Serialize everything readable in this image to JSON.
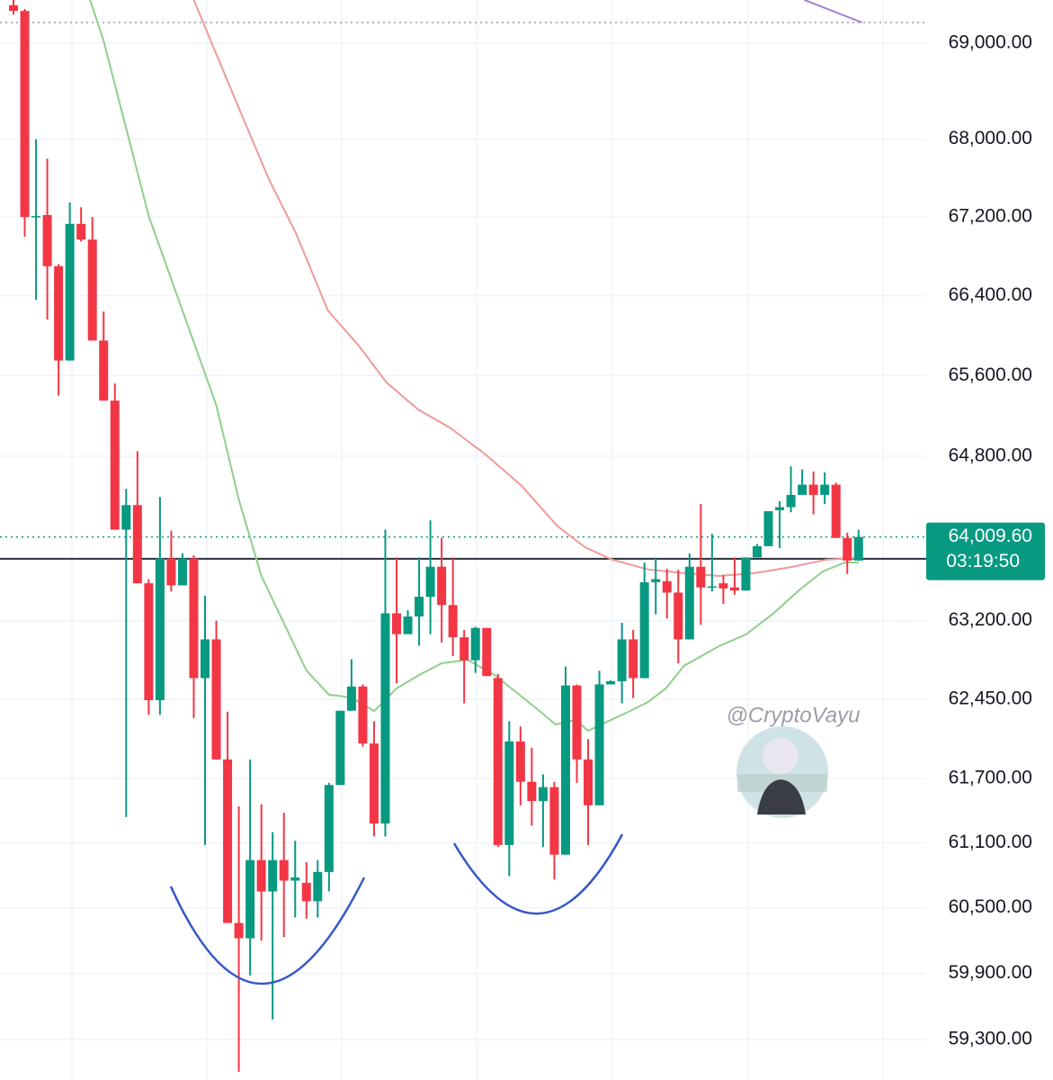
{
  "chart_data": {
    "type": "candlestick",
    "log_scale": true,
    "grid": true,
    "up_color": "#089981",
    "down_color": "#f23645",
    "ylim": [
      58936,
      69455
    ],
    "yticks": [
      {
        "value": 69000,
        "label": "69,000.00"
      },
      {
        "value": 68000,
        "label": "68,000.00"
      },
      {
        "value": 67200,
        "label": "67,200.00"
      },
      {
        "value": 66400,
        "label": "66,400.00"
      },
      {
        "value": 65600,
        "label": "65,600.00"
      },
      {
        "value": 64800,
        "label": "64,800.00"
      },
      {
        "value": 63200,
        "label": "63,200.00"
      },
      {
        "value": 62450,
        "label": "62,450.00"
      },
      {
        "value": 61700,
        "label": "61,700.00"
      },
      {
        "value": 61100,
        "label": "61,100.00"
      },
      {
        "value": 60500,
        "label": "60,500.00"
      },
      {
        "value": 59900,
        "label": "59,900.00"
      },
      {
        "value": 59300,
        "label": "59,300.00"
      }
    ],
    "open": [
      69400,
      69340,
      67200,
      67220,
      66700,
      65750,
      67130,
      66970,
      65950,
      65350,
      64080,
      64320,
      63560,
      62440,
      63800,
      63540,
      63800,
      62650,
      63020,
      61880,
      60360,
      60220,
      60940,
      60650,
      60940,
      60750,
      60730,
      60560,
      60830,
      61640,
      62340,
      62570,
      62030,
      61280,
      63270,
      63070,
      63240,
      63430,
      63720,
      63350,
      63040,
      62820,
      63130,
      62650,
      61080,
      62050,
      61670,
      61490,
      61620,
      60990,
      62580,
      61880,
      61450,
      62590,
      62620,
      63020,
      62650,
      63570,
      63580,
      63470,
      63020,
      63720,
      63520,
      63560,
      63520,
      63490,
      63810,
      63920,
      64270,
      64300,
      64420,
      64520,
      64420,
      64520,
      64000,
      63780
    ],
    "high": [
      69455,
      69360,
      68000,
      67800,
      66720,
      67350,
      67300,
      67200,
      66240,
      65520,
      64480,
      64850,
      63600,
      64400,
      64070,
      63850,
      63830,
      63440,
      63200,
      62330,
      61440,
      61880,
      61460,
      61200,
      61380,
      61120,
      60920,
      60940,
      61660,
      62340,
      62830,
      62590,
      62240,
      64080,
      63810,
      63300,
      63810,
      64170,
      64000,
      63810,
      63110,
      63140,
      63130,
      62690,
      62240,
      62190,
      61990,
      61740,
      61670,
      62760,
      62590,
      62070,
      62720,
      62630,
      63180,
      63110,
      63760,
      63810,
      63700,
      63690,
      63850,
      64330,
      64040,
      63640,
      63810,
      63810,
      63940,
      64260,
      64360,
      64700,
      64670,
      64650,
      64640,
      64540,
      64050,
      64080
    ],
    "low": [
      69300,
      67000,
      66360,
      66160,
      65400,
      65750,
      66950,
      65950,
      65350,
      64080,
      61340,
      63560,
      62300,
      62300,
      63480,
      63540,
      62270,
      61080,
      61880,
      60360,
      59010,
      59880,
      60200,
      59480,
      60230,
      60410,
      60400,
      60410,
      60650,
      61640,
      62340,
      62000,
      61160,
      61160,
      62600,
      63070,
      62960,
      63070,
      62990,
      62860,
      62410,
      62700,
      62670,
      61060,
      60790,
      61450,
      61260,
      61060,
      60760,
      60990,
      61660,
      61080,
      61450,
      62590,
      62410,
      62460,
      62650,
      63260,
      63220,
      62790,
      63020,
      63160,
      63480,
      63360,
      63450,
      63490,
      63810,
      63920,
      63900,
      64250,
      64420,
      64230,
      64330,
      64000,
      63650,
      63780
    ],
    "close": [
      69340,
      67200,
      67210,
      66700,
      65750,
      67130,
      66970,
      65950,
      65350,
      64080,
      64320,
      63560,
      62440,
      63800,
      63540,
      63800,
      62650,
      63020,
      61880,
      60360,
      60220,
      60940,
      60650,
      60940,
      60750,
      60780,
      60560,
      60830,
      61640,
      62340,
      62570,
      62030,
      61280,
      63270,
      63070,
      63240,
      63430,
      63720,
      63350,
      63040,
      62820,
      63130,
      62670,
      61080,
      62050,
      61670,
      61490,
      61620,
      60990,
      62580,
      61880,
      61450,
      62590,
      62620,
      63020,
      62650,
      63570,
      63600,
      63470,
      63020,
      63720,
      63520,
      63530,
      63510,
      63490,
      63810,
      63920,
      64260,
      64300,
      64420,
      64520,
      64420,
      64520,
      64000,
      63780,
      64009.6
    ],
    "lines": [
      {
        "color": "#8fcf8a",
        "x": [
          6.8,
          8,
          12,
          18,
          20,
          22,
          26,
          28,
          30,
          32,
          34,
          36,
          38,
          40.3,
          42.7,
          44.7,
          46.7,
          48.1,
          49.9,
          51,
          53,
          54.7,
          56.3,
          57.9,
          59.5,
          62.6,
          65,
          67.4,
          69.8,
          71.8,
          73.8,
          75
        ],
        "values": [
          69455,
          69028,
          67210,
          65306,
          64374,
          63630,
          62722,
          62492,
          62466,
          62337,
          62552,
          62680,
          62791,
          62825,
          62680,
          62508,
          62337,
          62210,
          62252,
          62150,
          62252,
          62337,
          62422,
          62552,
          62766,
          62955,
          63067,
          63265,
          63500,
          63673,
          63761,
          63761
        ]
      },
      {
        "color": "#ef9a9a",
        "x": [
          16,
          18,
          20,
          22.7,
          25.1,
          27.9,
          30.7,
          33.1,
          35.9,
          38.7,
          41.9,
          45.1,
          48.3,
          50.7,
          53.1,
          56.3,
          59.5,
          62.6,
          65.8,
          69,
          72.2,
          75
        ],
        "values": [
          69455,
          68887,
          68324,
          67580,
          67027,
          66252,
          65890,
          65531,
          65263,
          65084,
          64817,
          64508,
          64112,
          63911,
          63790,
          63694,
          63659,
          63630,
          63659,
          63717,
          63790,
          63805
        ]
      },
      {
        "color": "#9c7fd6",
        "x": [
          70.2,
          75.3
        ],
        "values": [
          69455,
          69218
        ]
      }
    ],
    "reference_lines": [
      {
        "value": 69218,
        "style": "dotted",
        "color": "#9598a1"
      },
      {
        "value": 63797,
        "style": "solid",
        "color": "#2a2e39"
      }
    ],
    "last_price": {
      "value": 64009.6,
      "label": "64,009.60"
    },
    "countdown": "03:19:50",
    "watermark": "@CryptoVayu"
  }
}
